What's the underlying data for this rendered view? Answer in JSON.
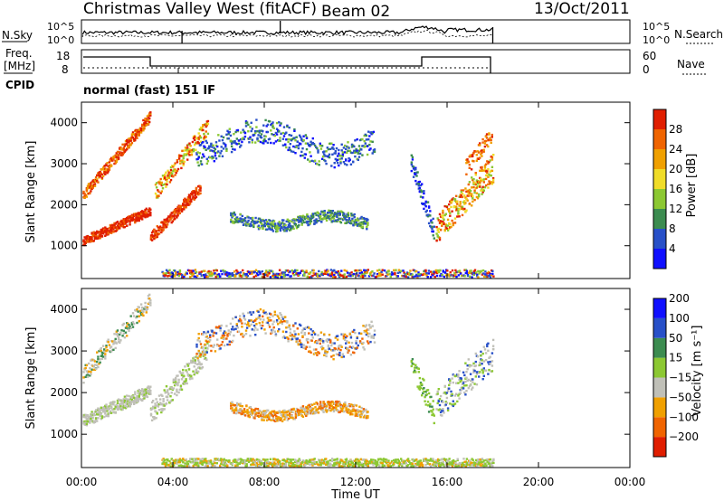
{
  "header": {
    "title": "Christmas Valley West (fitACF)",
    "beam": "Beam 02",
    "date": "13/Oct/2011"
  },
  "noise_panel": {
    "left_label": "N.Sky",
    "right_label": "N.Search",
    "left_ticks": [
      "10^5",
      "10^0"
    ],
    "right_ticks": [
      "10^5",
      "10^0"
    ]
  },
  "freq_panel": {
    "left_label_1": "Freq.",
    "left_label_2": "[MHz]",
    "left_ticks": [
      "18",
      "8"
    ],
    "right_label": "Nave",
    "right_ticks": [
      "60",
      "0"
    ],
    "cpid_label": "CPID",
    "cpid_text": "normal (fast) 151 IF"
  },
  "colors": {
    "power": [
      "#1010ff",
      "#2850c8",
      "#3c8c50",
      "#8cc832",
      "#f0dc28",
      "#f0a000",
      "#f06400",
      "#e01e00"
    ],
    "velocity": [
      "#e01e00",
      "#f06400",
      "#f0a000",
      "#c0c0b8",
      "#8cc832",
      "#3c8c50",
      "#2850c8",
      "#1010ff"
    ]
  },
  "chart_data": [
    {
      "type": "heatmap",
      "ylabel": "Slant Range [km]",
      "y_ticks": [
        1000,
        2000,
        3000,
        4000
      ],
      "ylim": [
        200,
        4500
      ],
      "colorbar": {
        "label": "Power [dB]",
        "ticks": [
          4,
          8,
          12,
          16,
          20,
          24,
          28
        ]
      }
    },
    {
      "type": "heatmap",
      "ylabel": "Slant Range [km]",
      "y_ticks": [
        1000,
        2000,
        3000,
        4000
      ],
      "ylim": [
        200,
        4500
      ],
      "colorbar": {
        "label": "Velocity [m s⁻¹]",
        "ticks": [
          200,
          100,
          50,
          15,
          -15,
          -50,
          -100,
          -200
        ]
      }
    }
  ],
  "x_axis": {
    "label": "Time UT",
    "ticks": [
      "00:00",
      "04:00",
      "08:00",
      "12:00",
      "16:00",
      "20:00",
      "00:00"
    ],
    "xlim_hours": [
      0,
      24
    ]
  }
}
